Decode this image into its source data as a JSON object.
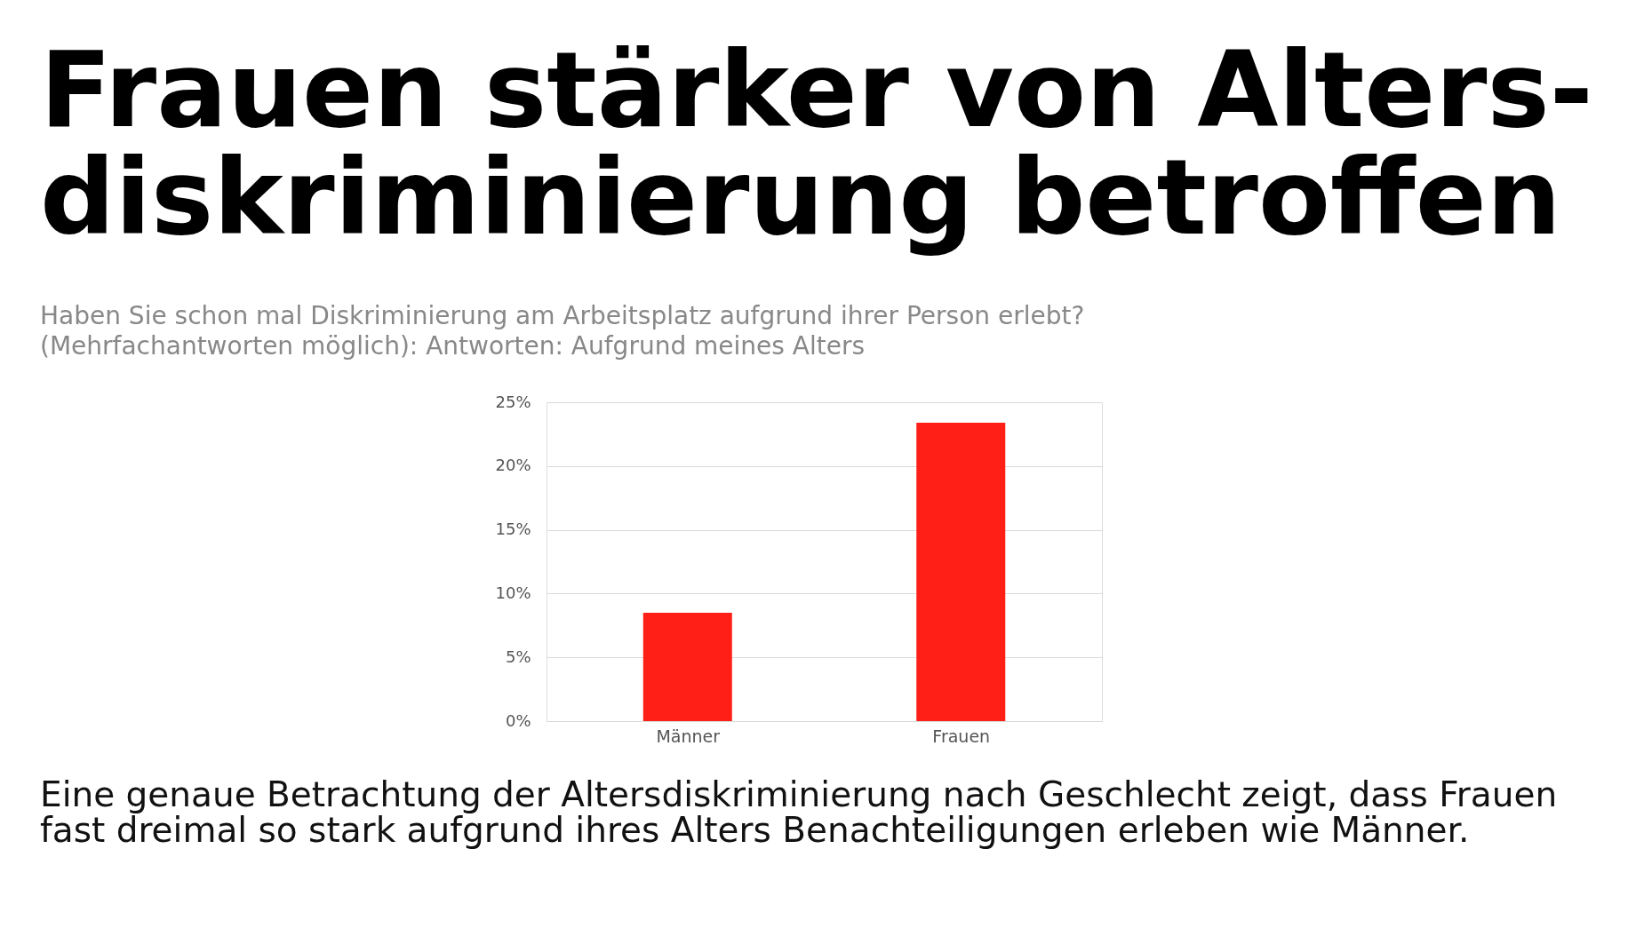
{
  "chart_data": {
    "type": "bar",
    "title": "Frauen stärker von Alters-\ndiskriminierung betroffen",
    "subtitle": "Haben Sie schon mal Diskriminierung am Arbeitsplatz aufgrund ihrer Person erlebt?\n(Mehrfachantworten möglich): Antworten: Aufgrund meines Alters",
    "annotations": [
      "Eine genaue Betrachtung der Altersdiskriminierung nach Geschlecht zeigt, dass Frauen\nfast dreimal so stark aufgrund ihres Alters Benachteiligungen erleben wie Männer."
    ],
    "categories": [
      "Männer",
      "Frauen"
    ],
    "values": [
      8.5,
      23.4
    ],
    "color": "#ff1f17",
    "ylim": [
      0,
      25
    ],
    "yticks": [
      {
        "value": 0,
        "label": "0%"
      },
      {
        "value": 5,
        "label": "5%"
      },
      {
        "value": 10,
        "label": "10%"
      },
      {
        "value": 15,
        "label": "15%"
      },
      {
        "value": 20,
        "label": "20%"
      },
      {
        "value": 25,
        "label": "25%"
      }
    ],
    "grid": "y"
  }
}
